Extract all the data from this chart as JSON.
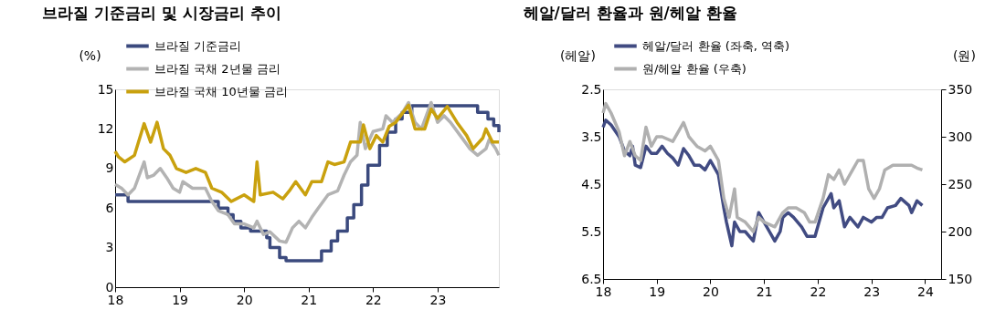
{
  "chart_data": [
    {
      "type": "line",
      "title": "브라질 기준금리 및 시장금리 추이",
      "ylabel": "(%)",
      "xlim": [
        18,
        23.95
      ],
      "xticks": [
        18,
        19,
        20,
        21,
        22,
        23
      ],
      "ylim": [
        0,
        15
      ],
      "yticks": [
        0,
        3,
        6,
        9,
        12,
        15
      ],
      "grid": false,
      "legend": "top left",
      "line_style": "solid",
      "marker": "none",
      "series": [
        {
          "name": "브라질 기준금리",
          "type": "step",
          "color": "#3b4a7e",
          "x": [
            18.0,
            18.2,
            19.6,
            19.75,
            19.83,
            19.95,
            20.1,
            20.35,
            20.4,
            20.55,
            20.65,
            21.2,
            21.35,
            21.45,
            21.6,
            21.7,
            21.82,
            21.92,
            22.1,
            22.22,
            22.35,
            22.45,
            22.6,
            23.62,
            23.78,
            23.87,
            23.95
          ],
          "values": [
            7.0,
            6.5,
            6.0,
            5.5,
            5.0,
            4.5,
            4.25,
            3.75,
            3.0,
            2.25,
            2.0,
            2.75,
            3.5,
            4.25,
            5.25,
            6.25,
            7.75,
            9.25,
            10.75,
            11.75,
            12.75,
            13.25,
            13.75,
            13.25,
            12.75,
            12.25,
            11.75
          ]
        },
        {
          "name": "브라질 국채 2년물 금리",
          "type": "line",
          "color": "#b3b3b3",
          "x": [
            18.0,
            18.1,
            18.2,
            18.3,
            18.45,
            18.5,
            18.6,
            18.7,
            18.8,
            18.9,
            19.0,
            19.05,
            19.2,
            19.4,
            19.5,
            19.6,
            19.75,
            19.85,
            20.0,
            20.15,
            20.2,
            20.3,
            20.4,
            20.55,
            20.65,
            20.75,
            20.85,
            20.95,
            21.05,
            21.15,
            21.3,
            21.45,
            21.55,
            21.65,
            21.75,
            21.8,
            21.88,
            22.0,
            22.15,
            22.2,
            22.3,
            22.45,
            22.55,
            22.65,
            22.75,
            22.9,
            23.0,
            23.1,
            23.2,
            23.35,
            23.5,
            23.62,
            23.75,
            23.8,
            23.9,
            23.95
          ],
          "values": [
            7.8,
            7.5,
            7.0,
            7.5,
            9.5,
            8.3,
            8.5,
            9.0,
            8.3,
            7.5,
            7.2,
            8.0,
            7.5,
            7.5,
            6.5,
            5.8,
            5.5,
            4.8,
            4.8,
            4.5,
            5.0,
            4.0,
            4.2,
            3.5,
            3.4,
            4.5,
            5.0,
            4.5,
            5.3,
            6.0,
            7.0,
            7.3,
            8.5,
            9.5,
            10.0,
            12.5,
            10.5,
            11.8,
            12.0,
            13.0,
            12.5,
            13.2,
            14.0,
            12.5,
            12.0,
            14.0,
            12.5,
            13.0,
            12.5,
            11.5,
            10.5,
            10.0,
            10.5,
            11.2,
            10.5,
            10.0
          ]
        },
        {
          "name": "브라질 국채 10년물 금리",
          "type": "line",
          "color": "#c9a10e",
          "x": [
            18.0,
            18.05,
            18.15,
            18.3,
            18.45,
            18.55,
            18.65,
            18.75,
            18.85,
            18.95,
            19.1,
            19.25,
            19.4,
            19.5,
            19.65,
            19.8,
            20.0,
            20.15,
            20.2,
            20.25,
            20.45,
            20.6,
            20.7,
            20.8,
            20.95,
            21.05,
            21.2,
            21.3,
            21.4,
            21.55,
            21.65,
            21.8,
            21.85,
            21.95,
            22.05,
            22.15,
            22.25,
            22.35,
            22.55,
            22.65,
            22.8,
            22.9,
            23.0,
            23.15,
            23.3,
            23.45,
            23.55,
            23.7,
            23.75,
            23.85,
            23.95
          ],
          "values": [
            10.3,
            9.9,
            9.5,
            10.0,
            12.4,
            11.0,
            12.5,
            10.5,
            10.0,
            9.0,
            8.7,
            9.0,
            8.7,
            7.5,
            7.2,
            6.5,
            7.0,
            6.5,
            9.5,
            7.0,
            7.2,
            6.7,
            7.3,
            8.0,
            7.0,
            8.0,
            8.0,
            9.5,
            9.3,
            9.5,
            11.0,
            11.0,
            12.3,
            10.5,
            11.5,
            11.0,
            12.2,
            12.5,
            13.8,
            12.0,
            12.0,
            13.5,
            12.8,
            13.7,
            12.5,
            11.5,
            10.5,
            11.3,
            12.0,
            11.0,
            11.0
          ]
        }
      ]
    },
    {
      "type": "line",
      "title": "헤알/달러 환율과 원/헤알 환율",
      "ylabel": "(헤알)",
      "y2label": "(원)",
      "xlim": [
        18,
        24.3
      ],
      "xticks": [
        18,
        19,
        20,
        21,
        22,
        23,
        24
      ],
      "ylim": [
        6.5,
        2.5
      ],
      "yticks": [
        2.5,
        3.5,
        4.5,
        5.5,
        6.5
      ],
      "y2lim": [
        150,
        350
      ],
      "y2ticks": [
        150,
        200,
        250,
        300,
        350
      ],
      "grid": false,
      "legend": "top left",
      "line_style": "solid",
      "marker": "none",
      "series": [
        {
          "name": "헤알/달러 환율 (좌축, 역축)",
          "type": "line",
          "color": "#414b82",
          "x": [
            18.0,
            18.05,
            18.15,
            18.3,
            18.4,
            18.5,
            18.55,
            18.6,
            18.7,
            18.8,
            18.9,
            19.0,
            19.1,
            19.2,
            19.3,
            19.4,
            19.5,
            19.6,
            19.7,
            19.8,
            19.9,
            20.0,
            20.15,
            20.25,
            20.3,
            20.4,
            20.45,
            20.55,
            20.65,
            20.8,
            20.9,
            21.0,
            21.1,
            21.2,
            21.3,
            21.35,
            21.45,
            21.55,
            21.7,
            21.8,
            21.95,
            22.1,
            22.25,
            22.3,
            22.4,
            22.5,
            22.6,
            22.75,
            22.85,
            23.0,
            23.1,
            23.2,
            23.3,
            23.45,
            23.55,
            23.7,
            23.75,
            23.85,
            23.95
          ],
          "values": [
            3.3,
            3.15,
            3.25,
            3.5,
            3.8,
            3.9,
            3.7,
            4.1,
            4.15,
            3.7,
            3.85,
            3.85,
            3.7,
            3.85,
            3.95,
            4.1,
            3.75,
            3.9,
            4.1,
            4.1,
            4.2,
            4.0,
            4.3,
            5.0,
            5.3,
            5.8,
            5.3,
            5.5,
            5.5,
            5.7,
            5.1,
            5.3,
            5.5,
            5.7,
            5.5,
            5.2,
            5.1,
            5.2,
            5.4,
            5.6,
            5.6,
            5.0,
            4.7,
            5.0,
            4.85,
            5.4,
            5.2,
            5.4,
            5.2,
            5.3,
            5.2,
            5.2,
            5.0,
            4.95,
            4.8,
            4.95,
            5.1,
            4.85,
            4.95
          ]
        },
        {
          "name": "원/헤알 환율 (우축)",
          "type": "line",
          "axis": "y2",
          "color": "#b0b0b0",
          "x": [
            18.0,
            18.05,
            18.15,
            18.3,
            18.4,
            18.5,
            18.6,
            18.7,
            18.8,
            18.9,
            19.0,
            19.1,
            19.3,
            19.5,
            19.6,
            19.75,
            19.9,
            20.0,
            20.15,
            20.25,
            20.35,
            20.45,
            20.5,
            20.65,
            20.8,
            20.9,
            21.0,
            21.2,
            21.35,
            21.45,
            21.6,
            21.75,
            21.85,
            21.95,
            22.1,
            22.2,
            22.3,
            22.4,
            22.5,
            22.65,
            22.75,
            22.85,
            22.95,
            23.05,
            23.15,
            23.25,
            23.4,
            23.6,
            23.75,
            23.85,
            23.95
          ],
          "values": [
            325,
            335,
            325,
            305,
            280,
            295,
            280,
            275,
            310,
            290,
            300,
            300,
            295,
            315,
            300,
            290,
            285,
            290,
            275,
            235,
            215,
            245,
            215,
            210,
            200,
            215,
            210,
            205,
            220,
            225,
            225,
            220,
            210,
            210,
            235,
            260,
            255,
            265,
            250,
            265,
            275,
            275,
            245,
            235,
            245,
            265,
            270,
            270,
            270,
            267,
            265
          ]
        }
      ]
    }
  ]
}
